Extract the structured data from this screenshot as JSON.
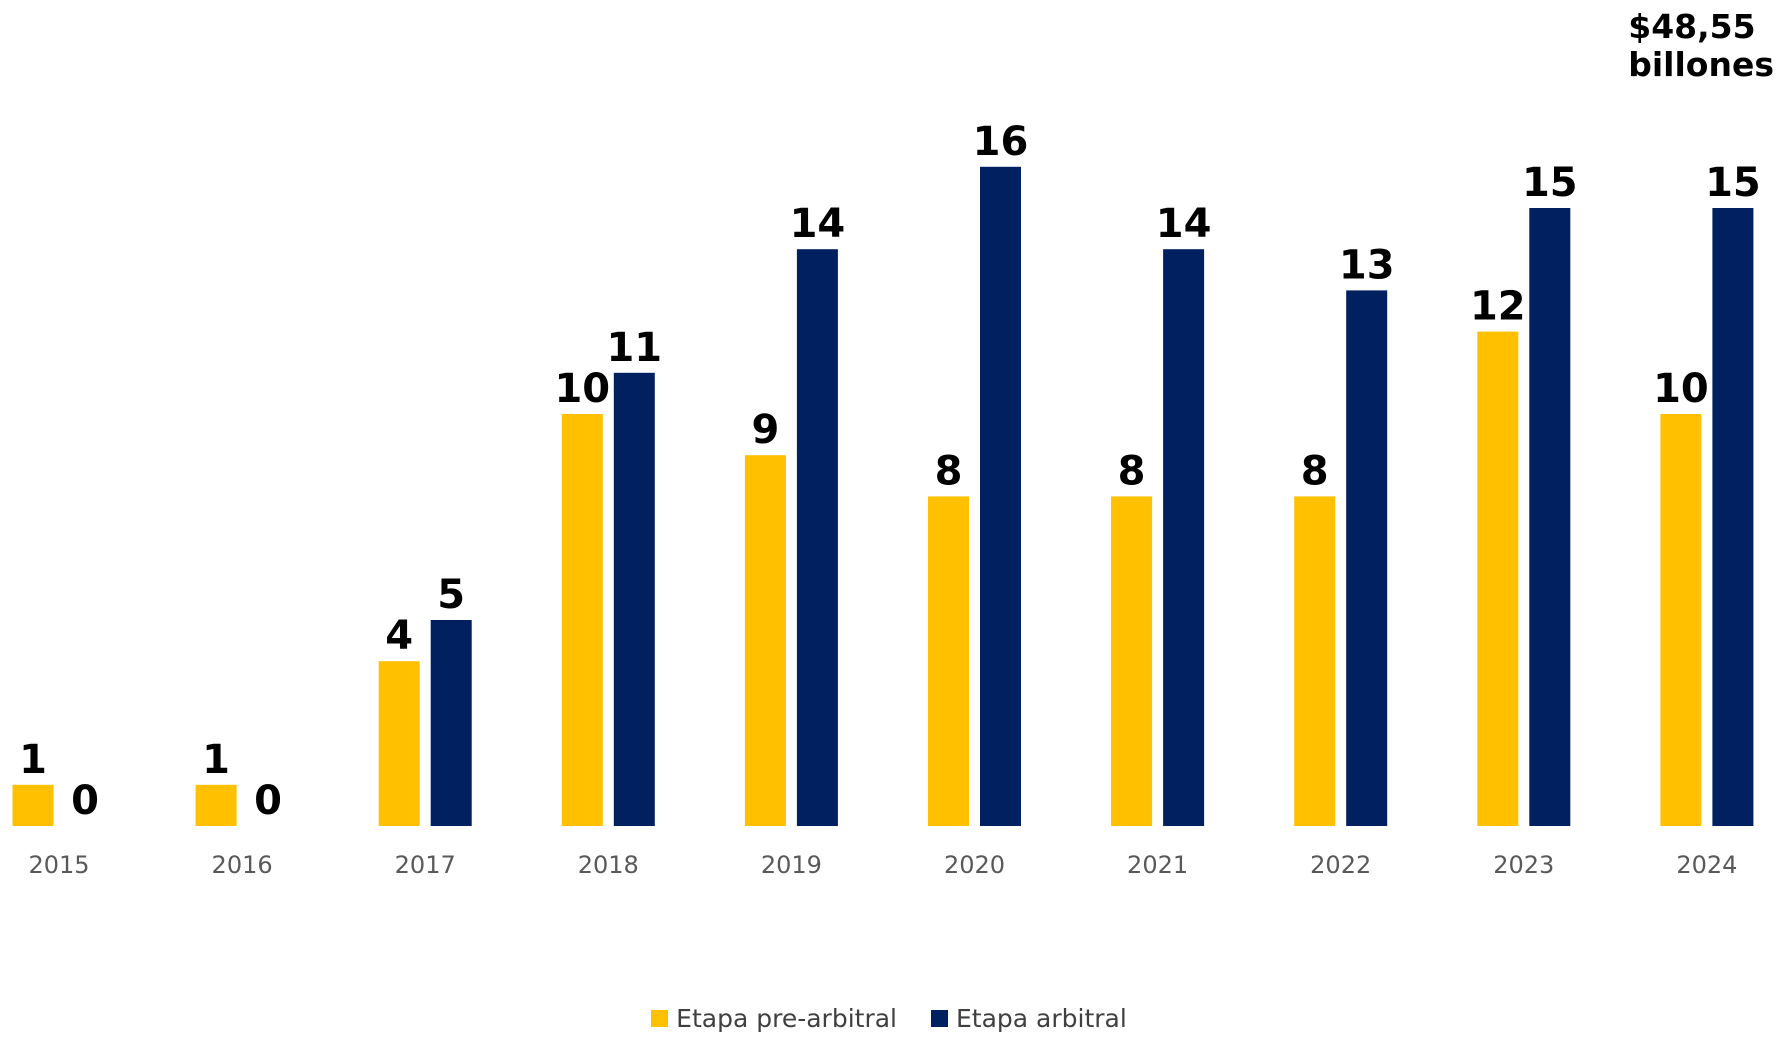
{
  "chart_data": {
    "type": "bar",
    "categories": [
      "2015",
      "2016",
      "2017",
      "2018",
      "2019",
      "2020",
      "2021",
      "2022",
      "2023",
      "2024"
    ],
    "series": [
      {
        "name": "Etapa pre-arbitral",
        "values": [
          1,
          1,
          4,
          10,
          9,
          8,
          8,
          8,
          12,
          10
        ],
        "color": "#FFC000"
      },
      {
        "name": "Etapa arbitral",
        "values": [
          0,
          0,
          5,
          11,
          14,
          16,
          14,
          13,
          15,
          15
        ],
        "color": "#002060"
      }
    ],
    "ylim": [
      0,
      16
    ],
    "grid": false,
    "legend_position": "bottom-center",
    "annotations": {
      "line1": "$48,55",
      "line2": "billones"
    }
  }
}
